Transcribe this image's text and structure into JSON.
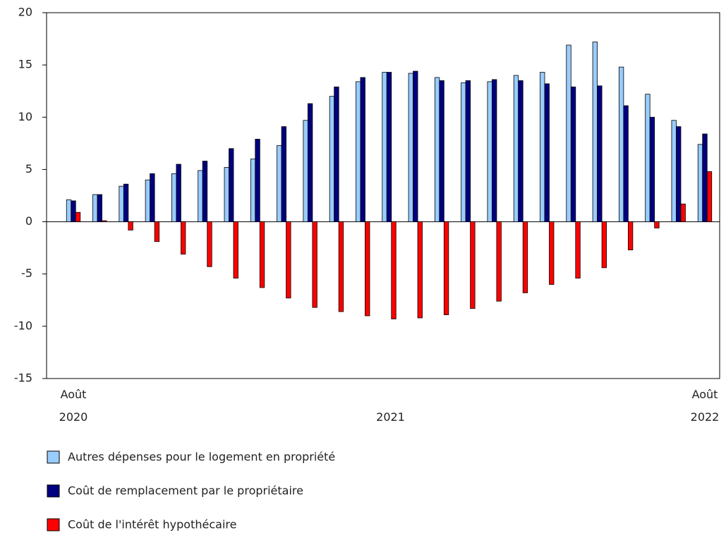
{
  "chart_data": {
    "type": "bar",
    "categories": [
      "Août 2020",
      null,
      null,
      null,
      null,
      null,
      null,
      null,
      null,
      null,
      null,
      null,
      null,
      null,
      null,
      null,
      null,
      null,
      null,
      null,
      null,
      null,
      null,
      null,
      "Août 2022"
    ],
    "x_mid_label": "2021",
    "series": [
      {
        "name": "Autres dépenses pour le logement en propriété",
        "color": "#99ccff",
        "values": [
          2.1,
          2.6,
          3.4,
          4.0,
          4.6,
          4.9,
          5.2,
          6.0,
          7.3,
          9.7,
          12.0,
          13.4,
          14.3,
          14.2,
          13.8,
          13.3,
          13.4,
          14.0,
          14.3,
          16.9,
          17.2,
          14.8,
          12.2,
          9.7,
          7.4
        ]
      },
      {
        "name": "Coût de remplacement par le propriétaire",
        "color": "#000080",
        "values": [
          2.0,
          2.6,
          3.6,
          4.6,
          5.5,
          5.8,
          7.0,
          7.9,
          9.1,
          11.3,
          12.9,
          13.8,
          14.3,
          14.4,
          13.5,
          13.5,
          13.6,
          13.5,
          13.2,
          12.9,
          13.0,
          11.1,
          10.0,
          9.1,
          8.4
        ]
      },
      {
        "name": "Coût de l'intérêt hypothécaire",
        "color": "#ff0000",
        "values": [
          0.9,
          0.1,
          -0.8,
          -1.9,
          -3.1,
          -4.3,
          -5.4,
          -6.3,
          -7.3,
          -8.2,
          -8.6,
          -9.0,
          -9.3,
          -9.2,
          -8.9,
          -8.3,
          -7.6,
          -6.8,
          -6.0,
          -5.4,
          -4.4,
          -2.7,
          -0.6,
          1.7,
          4.8
        ]
      }
    ],
    "ylim": [
      -15,
      20
    ],
    "yticks": [
      -15,
      -10,
      -5,
      0,
      5,
      10,
      15,
      20
    ],
    "grid": false
  }
}
